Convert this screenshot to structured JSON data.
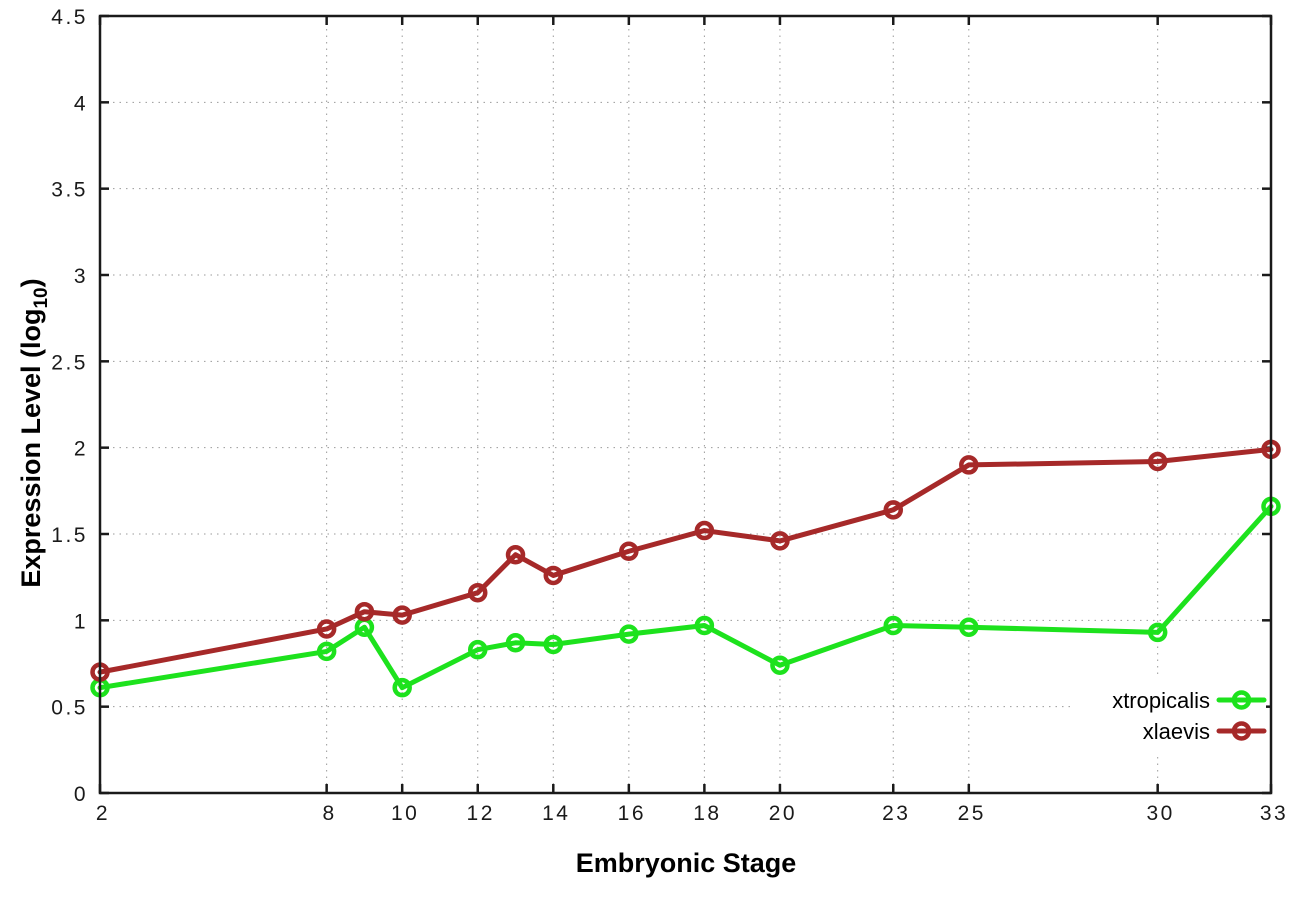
{
  "chart_data": {
    "type": "line",
    "title": "",
    "xlabel": "Embryonic Stage",
    "ylabel": "Expression Level (log10)",
    "ylabel_parts": {
      "prefix": "Expression Level (log",
      "subscript": "10",
      "suffix": ")"
    },
    "x": [
      2,
      8,
      9,
      10,
      12,
      13,
      14,
      16,
      18,
      20,
      23,
      25,
      30,
      33
    ],
    "x_ticks": [
      2,
      8,
      10,
      12,
      14,
      16,
      18,
      20,
      23,
      25,
      30,
      33
    ],
    "y_ticks": [
      0,
      0.5,
      1,
      1.5,
      2,
      2.5,
      3,
      3.5,
      4,
      4.5
    ],
    "xlim": [
      2,
      33
    ],
    "ylim": [
      0,
      4.5
    ],
    "grid": true,
    "legend_position": "bottom-right",
    "series": [
      {
        "name": "xtropicalis",
        "color": "#1de21d",
        "marker": "open-circle",
        "values": [
          0.61,
          0.82,
          0.96,
          0.61,
          0.83,
          0.87,
          0.86,
          0.92,
          0.97,
          0.74,
          0.97,
          0.96,
          0.93,
          1.66
        ]
      },
      {
        "name": "xlaevis",
        "color": "#a62929",
        "marker": "open-circle",
        "values": [
          0.7,
          0.95,
          1.05,
          1.03,
          1.16,
          1.38,
          1.26,
          1.4,
          1.52,
          1.46,
          1.64,
          1.9,
          1.92,
          1.99
        ]
      }
    ],
    "colors": {
      "axis": "#1a1a1a",
      "grid": "#9a9a9a",
      "background": "#ffffff"
    }
  }
}
